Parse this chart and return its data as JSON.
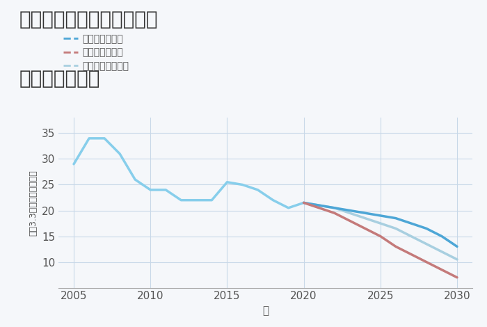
{
  "title_line1": "奈良県磯城郡三宅町伴堂の",
  "title_line2": "土地の価格推移",
  "xlabel": "年",
  "ylabel": "坪（3.3㎡）単価（万円）",
  "background_color": "#f5f7fa",
  "historical_years": [
    2005,
    2006,
    2007,
    2008,
    2009,
    2010,
    2011,
    2012,
    2013,
    2014,
    2015,
    2016,
    2017,
    2018,
    2019,
    2020
  ],
  "historical_values": [
    29,
    34,
    34,
    31,
    26,
    24,
    24,
    22,
    22,
    22,
    25.5,
    25,
    24,
    22,
    20.5,
    21.5
  ],
  "good_years": [
    2020,
    2021,
    2022,
    2023,
    2024,
    2025,
    2026,
    2027,
    2028,
    2029,
    2030
  ],
  "good_values": [
    21.5,
    21.0,
    20.5,
    20.0,
    19.5,
    19.0,
    18.5,
    17.5,
    16.5,
    15.0,
    13.0
  ],
  "bad_years": [
    2020,
    2021,
    2022,
    2023,
    2024,
    2025,
    2026,
    2027,
    2028,
    2029,
    2030
  ],
  "bad_values": [
    21.5,
    20.5,
    19.5,
    18.0,
    16.5,
    15.0,
    13.0,
    11.5,
    10.0,
    8.5,
    7.0
  ],
  "normal_years": [
    2020,
    2021,
    2022,
    2023,
    2024,
    2025,
    2026,
    2027,
    2028,
    2029,
    2030
  ],
  "normal_values": [
    21.5,
    21.0,
    20.5,
    19.5,
    18.5,
    17.5,
    16.5,
    15.0,
    13.5,
    12.0,
    10.5
  ],
  "historical_color": "#87CEEB",
  "good_color": "#4da6d6",
  "bad_color": "#c47a7a",
  "normal_color": "#a8cfe0",
  "good_label": "グッドシナリオ",
  "bad_label": "バッドシナリオ",
  "normal_label": "ノーマルシナリオ",
  "ylim": [
    5,
    38
  ],
  "xlim": [
    2004,
    2031
  ],
  "yticks": [
    10,
    15,
    20,
    25,
    30,
    35
  ],
  "xticks": [
    2005,
    2010,
    2015,
    2020,
    2025,
    2030
  ],
  "title_fontsize": 20,
  "axis_fontsize": 11,
  "legend_fontsize": 10,
  "linewidth": 2.5
}
